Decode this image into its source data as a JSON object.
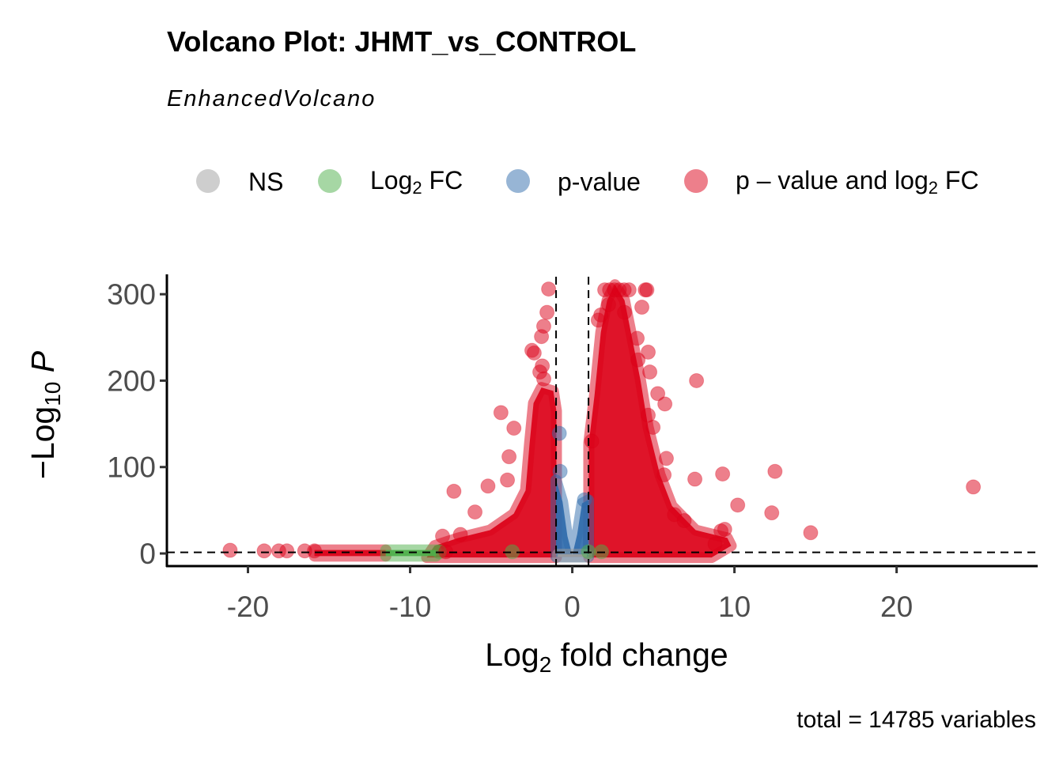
{
  "chart_data": {
    "type": "scatter",
    "title": "Volcano Plot: JHMT_vs_CONTROL",
    "subtitle": "EnhancedVolcano",
    "caption": "total = 14785 variables",
    "xlabel": {
      "pre": "Log",
      "sub": "2",
      "post": " fold change"
    },
    "ylabel": {
      "pre": "−Log",
      "sub": "10",
      "post": " P"
    },
    "xlim": [
      -25,
      28.7
    ],
    "ylim": [
      -14.6,
      323
    ],
    "xticks": [
      -20,
      -10,
      0,
      10,
      20
    ],
    "xtick_labels": [
      "-20",
      "-10",
      "0",
      "10",
      "20"
    ],
    "yticks": [
      0,
      100,
      200,
      300
    ],
    "ytick_labels": [
      "0",
      "100",
      "200",
      "300"
    ],
    "grid": false,
    "cutoffs": {
      "log2fc": [
        -1,
        1
      ],
      "neg_log10_p": 1.3
    },
    "legend": {
      "placement": "top",
      "items": [
        {
          "key": "NS",
          "label": "NS"
        },
        {
          "key": "FC",
          "label_pre": "Log",
          "label_sub": "2",
          "label_post": " FC"
        },
        {
          "key": "P",
          "label": "p-value"
        },
        {
          "key": "FC_P",
          "label_pre": "p – value and log",
          "label_sub": "2",
          "label_post": " FC"
        }
      ]
    },
    "colors": {
      "NS": "#9e9e9e",
      "FC": "#4daf4a",
      "P": "#2f6bac",
      "FC_P": "#dc0017"
    },
    "dense_regions": [
      {
        "category": "FC_P",
        "polygon": [
          [
            1.02,
            -4.6
          ],
          [
            1.02,
            128
          ],
          [
            1.37,
            183
          ],
          [
            1.76,
            256
          ],
          [
            2.15,
            293
          ],
          [
            2.63,
            311
          ],
          [
            3.22,
            293
          ],
          [
            3.71,
            247
          ],
          [
            4.2,
            201
          ],
          [
            4.68,
            146
          ],
          [
            5.41,
            91
          ],
          [
            6.15,
            55
          ],
          [
            7.61,
            27
          ],
          [
            9.56,
            18
          ],
          [
            9.8,
            9
          ],
          [
            8.59,
            -4.6
          ]
        ]
      },
      {
        "category": "FC_P",
        "polygon": [
          [
            -0.98,
            -4.6
          ],
          [
            -0.98,
            165
          ],
          [
            -1.17,
            188
          ],
          [
            -1.9,
            192
          ],
          [
            -2.39,
            174
          ],
          [
            -2.63,
            128
          ],
          [
            -2.88,
            73
          ],
          [
            -3.61,
            46
          ],
          [
            -5.07,
            27
          ],
          [
            -7.02,
            18
          ],
          [
            -8.49,
            9
          ],
          [
            -8.98,
            -4.6
          ]
        ]
      },
      {
        "category": "FC_P",
        "polygon": [
          [
            -15.9,
            -3
          ],
          [
            -15.9,
            4
          ],
          [
            -11.5,
            4
          ],
          [
            -11.5,
            -3
          ]
        ]
      },
      {
        "category": "FC",
        "polygon": [
          [
            -11.5,
            -3
          ],
          [
            -11.5,
            4
          ],
          [
            -8.4,
            4
          ],
          [
            -8.4,
            -3
          ]
        ]
      },
      {
        "category": "P",
        "polygon": [
          [
            -1,
            -4
          ],
          [
            -1,
            85
          ],
          [
            -0.6,
            60
          ],
          [
            -0.3,
            20
          ],
          [
            0,
            -2
          ],
          [
            0.3,
            22
          ],
          [
            0.6,
            58
          ],
          [
            1,
            62
          ],
          [
            1,
            -4
          ]
        ]
      },
      {
        "category": "NS",
        "polygon": [
          [
            -0.9,
            -4
          ],
          [
            -0.9,
            -1
          ],
          [
            0.9,
            -1
          ],
          [
            0.9,
            -4
          ]
        ]
      }
    ],
    "points": [
      [
        -21.1,
        3.7,
        "FC_P"
      ],
      [
        -19.0,
        3,
        "FC_P"
      ],
      [
        -18.1,
        3,
        "FC_P"
      ],
      [
        -17.6,
        3,
        "FC_P"
      ],
      [
        -16.5,
        3,
        "FC_P"
      ],
      [
        -15.9,
        3,
        "FC_P"
      ],
      [
        -8.2,
        2,
        "FC"
      ],
      [
        -3.7,
        2,
        "FC"
      ],
      [
        1.0,
        2,
        "FC"
      ],
      [
        1.8,
        2,
        "FC"
      ],
      [
        -0.8,
        139,
        "P"
      ],
      [
        -0.75,
        95,
        "P"
      ],
      [
        0.75,
        62,
        "P"
      ],
      [
        -7.3,
        72,
        "FC_P"
      ],
      [
        -4.4,
        163,
        "FC_P"
      ],
      [
        -3.6,
        145,
        "FC_P"
      ],
      [
        -3.9,
        112,
        "FC_P"
      ],
      [
        -4.0,
        85,
        "FC_P"
      ],
      [
        -5.2,
        78,
        "FC_P"
      ],
      [
        -6.0,
        48,
        "FC_P"
      ],
      [
        -6.9,
        22,
        "FC_P"
      ],
      [
        -8.0,
        20,
        "FC_P"
      ],
      [
        -7.8,
        2,
        "FC_P"
      ],
      [
        -1.46,
        306,
        "FC_P"
      ],
      [
        -1.56,
        279,
        "FC_P"
      ],
      [
        -1.76,
        263,
        "FC_P"
      ],
      [
        -1.9,
        251,
        "FC_P"
      ],
      [
        -2.49,
        235,
        "FC_P"
      ],
      [
        -2.35,
        232,
        "FC_P"
      ],
      [
        -1.85,
        217,
        "FC_P"
      ],
      [
        -2.0,
        210,
        "FC_P"
      ],
      [
        -1.76,
        202,
        "FC_P"
      ],
      [
        2.0,
        305,
        "FC_P"
      ],
      [
        2.3,
        305,
        "FC_P"
      ],
      [
        2.6,
        305,
        "FC_P"
      ],
      [
        2.9,
        305,
        "FC_P"
      ],
      [
        3.2,
        305,
        "FC_P"
      ],
      [
        3.5,
        305,
        "FC_P"
      ],
      [
        4.6,
        305,
        "FC_P"
      ],
      [
        4.5,
        305,
        "FC_P"
      ],
      [
        2.24,
        288,
        "FC_P"
      ],
      [
        1.76,
        276,
        "FC_P"
      ],
      [
        1.6,
        270,
        "FC_P"
      ],
      [
        3.22,
        279,
        "FC_P"
      ],
      [
        4.29,
        285,
        "FC_P"
      ],
      [
        4.0,
        249,
        "FC_P"
      ],
      [
        4.68,
        233,
        "FC_P"
      ],
      [
        4.78,
        210,
        "FC_P"
      ],
      [
        4.05,
        224,
        "FC_P"
      ],
      [
        7.66,
        200,
        "FC_P"
      ],
      [
        5.27,
        185,
        "FC_P"
      ],
      [
        5.71,
        173,
        "FC_P"
      ],
      [
        4.68,
        160,
        "FC_P"
      ],
      [
        4.98,
        146,
        "FC_P"
      ],
      [
        5.8,
        110,
        "FC_P"
      ],
      [
        5.66,
        91,
        "FC_P"
      ],
      [
        7.56,
        86,
        "FC_P"
      ],
      [
        9.27,
        92,
        "FC_P"
      ],
      [
        12.5,
        95,
        "FC_P"
      ],
      [
        24.73,
        77,
        "FC_P"
      ],
      [
        10.2,
        56,
        "FC_P"
      ],
      [
        12.3,
        47,
        "FC_P"
      ],
      [
        14.7,
        24,
        "FC_P"
      ],
      [
        9.4,
        28,
        "FC_P"
      ],
      [
        9.17,
        26,
        "FC_P"
      ],
      [
        8.8,
        11,
        "FC_P"
      ],
      [
        6.3,
        45,
        "FC_P"
      ],
      [
        6.9,
        38,
        "FC_P"
      ],
      [
        1.2,
        130,
        "FC_P"
      ]
    ]
  }
}
